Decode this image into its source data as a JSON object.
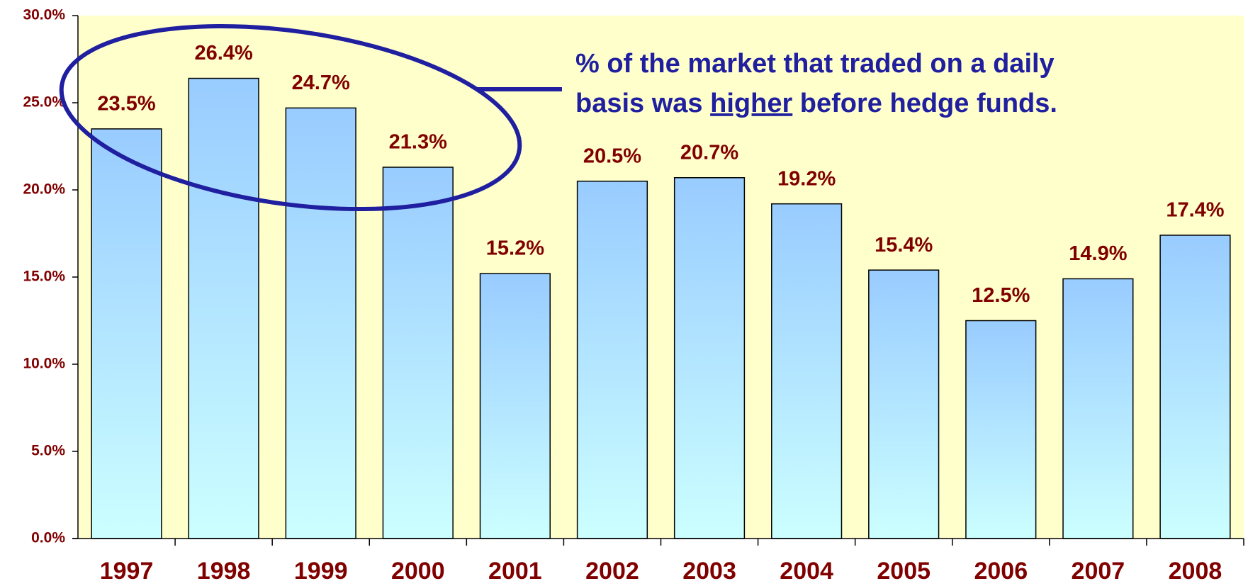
{
  "chart_data": {
    "type": "bar",
    "categories": [
      "1997",
      "1998",
      "1999",
      "2000",
      "2001",
      "2002",
      "2003",
      "2004",
      "2005",
      "2006",
      "2007",
      "2008"
    ],
    "values": [
      23.5,
      26.4,
      24.7,
      21.3,
      15.2,
      20.5,
      20.7,
      19.2,
      15.4,
      12.5,
      14.9,
      17.4
    ],
    "value_labels": [
      "23.5%",
      "26.4%",
      "24.7%",
      "21.3%",
      "15.2%",
      "20.5%",
      "20.7%",
      "19.2%",
      "15.4%",
      "12.5%",
      "14.9%",
      "17.4%"
    ],
    "color": "#99ccff",
    "ylim": [
      0,
      30
    ],
    "yticks": [
      {
        "value": 0,
        "label": "0.0%"
      },
      {
        "value": 5,
        "label": "5.0%"
      },
      {
        "value": 10,
        "label": "10.0%"
      },
      {
        "value": 15,
        "label": "15.0%"
      },
      {
        "value": 20,
        "label": "20.0%"
      },
      {
        "value": 25,
        "label": "25.0%"
      },
      {
        "value": 30,
        "label": "30.0%"
      }
    ],
    "grid": false,
    "annotation": [
      "% of the market that traded on a daily",
      "basis was ",
      "higher",
      " before hedge funds."
    ]
  }
}
